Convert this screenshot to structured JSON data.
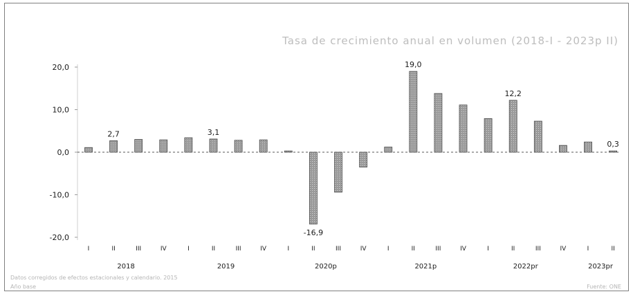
{
  "header": {
    "title": "",
    "subtitle": "Tasa de crecimiento anual en volumen (2018-I - 2023p II)"
  },
  "footer": {
    "note_source": "Datos corregidos de efectos estacionales y calendario. 2015",
    "note_ref": "Año base",
    "credit": "Fuente: ONE"
  },
  "colors": {
    "bar": "#9a9a9a",
    "bar_edge": "#4a4a4a",
    "axis": "#1a1a1a"
  },
  "chart_data": {
    "type": "bar",
    "title": "",
    "subtitle": "Tasa de crecimiento anual en volumen (2018-I - 2023p II)",
    "xlabel": "",
    "ylabel": "",
    "ylim": [
      -20,
      20
    ],
    "yticks": [
      20,
      10,
      0,
      -10,
      -20
    ],
    "ytick_labels": [
      "20,0",
      "10,0",
      "0,0",
      "-10,0",
      "-20,0"
    ],
    "categories": [
      "I",
      "II",
      "III",
      "IV",
      "I",
      "II",
      "III",
      "IV",
      "I",
      "II",
      "III",
      "IV",
      "I",
      "II",
      "III",
      "IV",
      "I",
      "II",
      "III",
      "IV",
      "I",
      "II"
    ],
    "groups": [
      {
        "label": "2018",
        "count": 4
      },
      {
        "label": "2019",
        "count": 4
      },
      {
        "label": "2020p",
        "count": 4
      },
      {
        "label": "2021p",
        "count": 4
      },
      {
        "label": "2022pr",
        "count": 4
      },
      {
        "label": "2023pr",
        "count": 2
      }
    ],
    "values": [
      1.1,
      2.7,
      3.0,
      2.9,
      3.4,
      3.1,
      2.8,
      2.9,
      0.3,
      -16.9,
      -9.4,
      -3.5,
      1.2,
      19.0,
      13.8,
      11.1,
      7.9,
      12.2,
      7.3,
      1.6,
      2.4,
      0.3
    ],
    "data_labels": [
      {
        "index": 1,
        "text": "2,7"
      },
      {
        "index": 5,
        "text": "3,1"
      },
      {
        "index": 9,
        "text": "-16,9"
      },
      {
        "index": 13,
        "text": "19,0"
      },
      {
        "index": 17,
        "text": "12,2"
      },
      {
        "index": 21,
        "text": "0,3"
      }
    ],
    "grid": false,
    "legend": "none"
  }
}
